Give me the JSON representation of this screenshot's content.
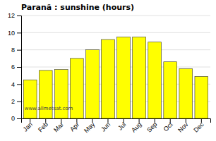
{
  "chart_data": {
    "type": "bar",
    "title": "Paranã : sunshine (hours)",
    "categories": [
      "Jan",
      "Feb",
      "Mar",
      "Apr",
      "May",
      "Jun",
      "Jul",
      "Aug",
      "Sep",
      "Oct",
      "Nov",
      "Dec"
    ],
    "values": [
      4.5,
      5.6,
      5.7,
      7.0,
      8.0,
      9.2,
      9.5,
      9.5,
      8.9,
      6.6,
      5.8,
      4.9
    ],
    "color": "#ffff00",
    "ylim": [
      0,
      12
    ],
    "yticks": [
      0,
      2,
      4,
      6,
      8,
      10,
      12
    ],
    "grid": true,
    "annotations": [
      "www.allmetsat.com"
    ]
  }
}
